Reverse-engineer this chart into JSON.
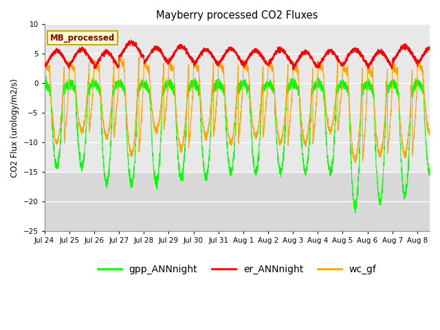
{
  "title": "Mayberry processed CO2 Fluxes",
  "ylabel": "CO2 Flux (urology/m2/s)",
  "ylim": [
    -25,
    10
  ],
  "yticks": [
    -25,
    -20,
    -15,
    -10,
    -5,
    0,
    5,
    10
  ],
  "background_color": "#ffffff",
  "plot_bg_color": "#d8d8d8",
  "plot_bg_upper": "#e8e8e8",
  "shade_below": -15,
  "grid_color": "#ffffff",
  "legend_label": "MB_processed",
  "legend_bg": "#ffffcc",
  "legend_edge": "#ccaa00",
  "series": {
    "gpp_ANNnight": {
      "color": "#00ff00",
      "label": "gpp_ANNnight"
    },
    "er_ANNnight": {
      "color": "#ff0000",
      "label": "er_ANNnight"
    },
    "wc_gf": {
      "color": "#ffa500",
      "label": "wc_gf"
    }
  },
  "n_days": 15.5,
  "pts_per_day": 288,
  "x_tick_labels": [
    "Jul 24",
    "Jul 25",
    "Jul 26",
    "Jul 27",
    "Jul 28",
    "Jul 29",
    "Jul 30",
    "Jul 31",
    "Aug 1",
    "Aug 2",
    "Aug 3",
    "Aug 4",
    "Aug 5",
    "Aug 6",
    "Aug 7",
    "Aug 8"
  ],
  "x_tick_days": [
    0,
    1,
    2,
    3,
    4,
    5,
    6,
    7,
    8,
    9,
    10,
    11,
    12,
    13,
    14,
    15
  ]
}
